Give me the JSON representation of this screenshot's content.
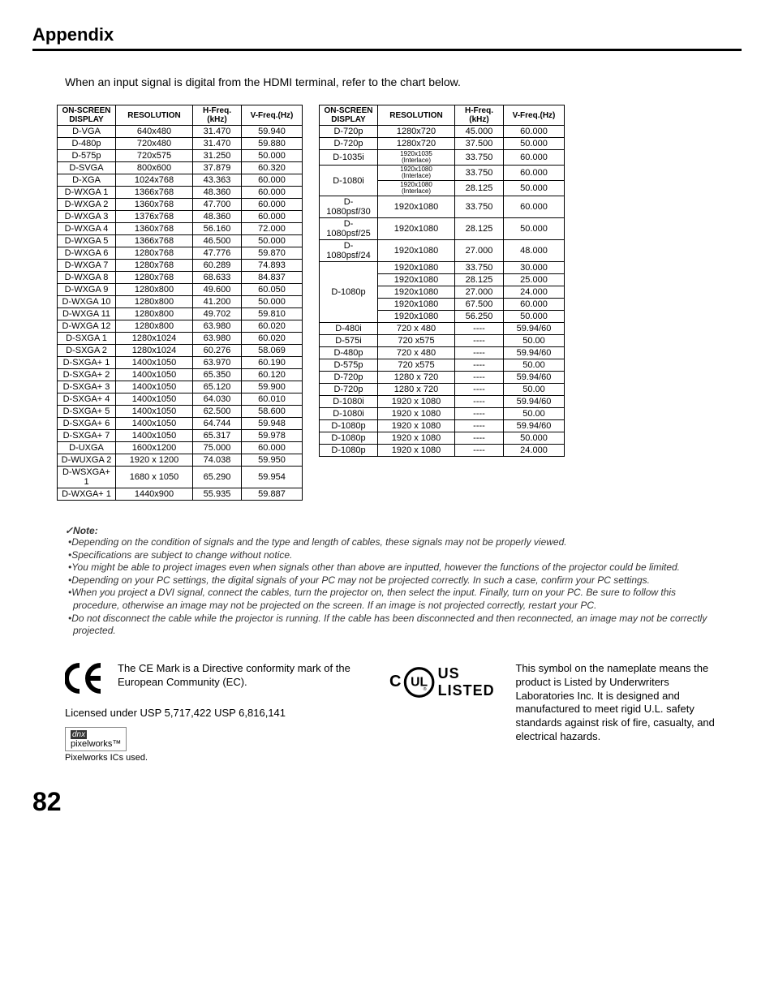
{
  "title": "Appendix",
  "intro": "When an input signal is digital from the HDMI terminal, refer to the chart below.",
  "headers": {
    "onscreen": "ON-SCREEN DISPLAY",
    "resolution": "RESOLUTION",
    "hfreq": "H-Freq. (kHz)",
    "vfreq": "V-Freq.(Hz)"
  },
  "table_style": {
    "border_color": "#000000",
    "header_bg": "#ffffff",
    "font_size_body": 11,
    "font_size_header": 10,
    "font_size_small": 8
  },
  "table_left": [
    [
      "D-VGA",
      "640x480",
      "31.470",
      "59.940"
    ],
    [
      "D-480p",
      "720x480",
      "31.470",
      "59.880"
    ],
    [
      "D-575p",
      "720x575",
      "31.250",
      "50.000"
    ],
    [
      "D-SVGA",
      "800x600",
      "37.879",
      "60.320"
    ],
    [
      "D-XGA",
      "1024x768",
      "43.363",
      "60.000"
    ],
    [
      "D-WXGA 1",
      "1366x768",
      "48.360",
      "60.000"
    ],
    [
      "D-WXGA 2",
      "1360x768",
      "47.700",
      "60.000"
    ],
    [
      "D-WXGA 3",
      "1376x768",
      "48.360",
      "60.000"
    ],
    [
      "D-WXGA 4",
      "1360x768",
      "56.160",
      "72.000"
    ],
    [
      "D-WXGA 5",
      "1366x768",
      "46.500",
      "50.000"
    ],
    [
      "D-WXGA 6",
      "1280x768",
      "47.776",
      "59.870"
    ],
    [
      "D-WXGA 7",
      "1280x768",
      "60.289",
      "74.893"
    ],
    [
      "D-WXGA 8",
      "1280x768",
      "68.633",
      "84.837"
    ],
    [
      "D-WXGA 9",
      "1280x800",
      "49.600",
      "60.050"
    ],
    [
      "D-WXGA 10",
      "1280x800",
      "41.200",
      "50.000"
    ],
    [
      "D-WXGA 11",
      "1280x800",
      "49.702",
      "59.810"
    ],
    [
      "D-WXGA 12",
      "1280x800",
      "63.980",
      "60.020"
    ],
    [
      "D-SXGA 1",
      "1280x1024",
      "63.980",
      "60.020"
    ],
    [
      "D-SXGA 2",
      "1280x1024",
      "60.276",
      "58.069"
    ],
    [
      "D-SXGA+ 1",
      "1400x1050",
      "63.970",
      "60.190"
    ],
    [
      "D-SXGA+ 2",
      "1400x1050",
      "65.350",
      "60.120"
    ],
    [
      "D-SXGA+ 3",
      "1400x1050",
      "65.120",
      "59.900"
    ],
    [
      "D-SXGA+ 4",
      "1400x1050",
      "64.030",
      "60.010"
    ],
    [
      "D-SXGA+ 5",
      "1400x1050",
      "62.500",
      "58.600"
    ],
    [
      "D-SXGA+ 6",
      "1400x1050",
      "64.744",
      "59.948"
    ],
    [
      "D-SXGA+ 7",
      "1400x1050",
      "65.317",
      "59.978"
    ],
    [
      "D-UXGA",
      "1600x1200",
      "75.000",
      "60.000"
    ],
    [
      "D-WUXGA 2",
      "1920 x 1200",
      "74.038",
      "59.950"
    ],
    [
      "D-WSXGA+ 1",
      "1680 x 1050",
      "65.290",
      "59.954"
    ],
    [
      "D-WXGA+ 1",
      "1440x900",
      "55.935",
      "59.887"
    ]
  ],
  "table_right": [
    {
      "d": "D-720p",
      "r": "1280x720",
      "h": "45.000",
      "v": "60.000"
    },
    {
      "d": "D-720p",
      "r": "1280x720",
      "h": "37.500",
      "v": "50.000"
    },
    {
      "d": "D-1035i",
      "r": "1920x1035 (Interlace)",
      "h": "33.750",
      "v": "60.000",
      "small": true
    },
    {
      "d": "D-1080i",
      "rowspan": 2,
      "r": "1920x1080 (Interlace)",
      "h": "33.750",
      "v": "60.000",
      "small": true
    },
    {
      "r": "1920x1080 (Interlace)",
      "h": "28.125",
      "v": "50.000",
      "small": true
    },
    {
      "d": "D-1080psf/30",
      "r": "1920x1080",
      "h": "33.750",
      "v": "60.000"
    },
    {
      "d": "D-1080psf/25",
      "r": "1920x1080",
      "h": "28.125",
      "v": "50.000"
    },
    {
      "d": "D-1080psf/24",
      "r": "1920x1080",
      "h": "27.000",
      "v": "48.000"
    },
    {
      "d": "D-1080p",
      "rowspan": 5,
      "r": "1920x1080",
      "h": "33.750",
      "v": "30.000"
    },
    {
      "r": "1920x1080",
      "h": "28.125",
      "v": "25.000"
    },
    {
      "r": "1920x1080",
      "h": "27.000",
      "v": "24.000"
    },
    {
      "r": "1920x1080",
      "h": "67.500",
      "v": "60.000"
    },
    {
      "r": "1920x1080",
      "h": "56.250",
      "v": "50.000"
    },
    {
      "d": "D-480i",
      "r": "720 x 480",
      "h": "----",
      "v": "59.94/60"
    },
    {
      "d": "D-575i",
      "r": "720 x575",
      "h": "----",
      "v": "50.00"
    },
    {
      "d": "D-480p",
      "r": "720 x 480",
      "h": "----",
      "v": "59.94/60"
    },
    {
      "d": "D-575p",
      "r": "720 x575",
      "h": "----",
      "v": "50.00"
    },
    {
      "d": "D-720p",
      "r": "1280 x 720",
      "h": "----",
      "v": "59.94/60"
    },
    {
      "d": "D-720p",
      "r": "1280 x 720",
      "h": "----",
      "v": "50.00"
    },
    {
      "d": "D-1080i",
      "r": "1920 x 1080",
      "h": "----",
      "v": "59.94/60"
    },
    {
      "d": "D-1080i",
      "r": "1920 x 1080",
      "h": "----",
      "v": "50.00"
    },
    {
      "d": "D-1080p",
      "r": "1920 x 1080",
      "h": "----",
      "v": "59.94/60"
    },
    {
      "d": "D-1080p",
      "r": "1920 x 1080",
      "h": "----",
      "v": "50.000"
    },
    {
      "d": "D-1080p",
      "r": "1920 x 1080",
      "h": "----",
      "v": "24.000"
    }
  ],
  "notes_head": "✓Note:",
  "notes": [
    "•Depending on the condition of signals and the type and length of cables, these signals may not be properly viewed.",
    "•Specifications are subject to change without notice.",
    "•You might be able to project images even when signals other than above are inputted, however the functions of the projector could be limited.",
    "•Depending on your PC settings, the digital signals of your PC may not be projected correctly. In such a case, confirm your PC settings.",
    "•When you project a DVI signal, connect the cables, turn the projector on, then select the input. Finally, turn on your PC. Be sure to follow this procedure, otherwise an image may not be projected on the screen. If an image is not projected correctly, restart your PC.",
    "•Do not disconnect the cable while the projector is running. If the cable has been disconnected and then reconnected, an image may not be correctly projected."
  ],
  "ce_text": "The CE Mark is a Directive conformity mark of the European Community (EC).",
  "license": "Licensed under USP 5,717,422 USP 6,816,141",
  "pixelworks_brand_top": "dnx",
  "pixelworks_brand_bottom": "pixelworks™",
  "pixelworks_caption": "Pixelworks ICs used.",
  "ul_text": "This symbol on the nameplate means the product is Listed by Underwriters Laboratories Inc. It is designed and manufactured to meet rigid U.L. safety standards against risk of fire, casualty, and electrical hazards.",
  "ul_listed": "US LISTED",
  "ul_c": "C",
  "page_number": "82"
}
